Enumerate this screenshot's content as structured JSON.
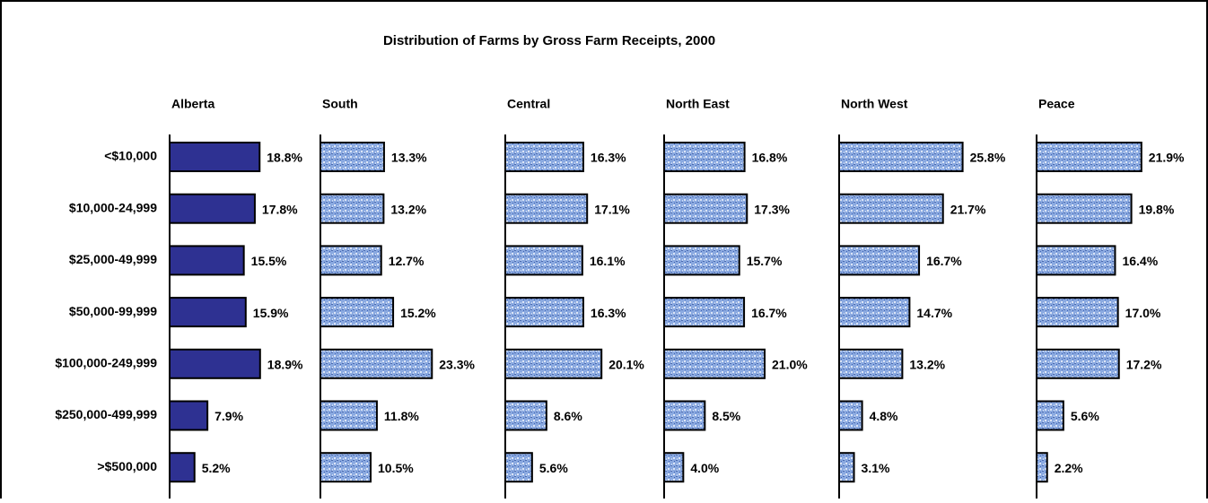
{
  "chart_data": {
    "type": "bar",
    "orientation": "horizontal",
    "title": "Distribution of Farms by Gross Farm Receipts, 2000",
    "categories": [
      "<$10,000",
      "$10,000-24,999",
      "$25,000-49,999",
      "$50,000-99,999",
      "$100,000-249,999",
      "$250,000-499,999",
      ">$500,000"
    ],
    "xlim": [
      0,
      30
    ],
    "series": [
      {
        "name": "Alberta",
        "color": "#2e3192",
        "pattern": false,
        "values": [
          18.8,
          17.8,
          15.5,
          15.9,
          18.9,
          7.9,
          5.2
        ],
        "value_labels": [
          "18.8%",
          "17.8%",
          "15.5%",
          "15.9%",
          "18.9%",
          "7.9%",
          "5.2%"
        ]
      },
      {
        "name": "South",
        "color": "#7f9fd8",
        "pattern": true,
        "values": [
          13.3,
          13.2,
          12.7,
          15.2,
          23.3,
          11.8,
          10.5
        ],
        "value_labels": [
          "13.3%",
          "13.2%",
          "12.7%",
          "15.2%",
          "23.3%",
          "11.8%",
          "10.5%"
        ]
      },
      {
        "name": "Central",
        "color": "#7f9fd8",
        "pattern": true,
        "values": [
          16.3,
          17.1,
          16.1,
          16.3,
          20.1,
          8.6,
          5.6
        ],
        "value_labels": [
          "16.3%",
          "17.1%",
          "16.1%",
          "16.3%",
          "20.1%",
          "8.6%",
          "5.6%"
        ]
      },
      {
        "name": "North East",
        "color": "#7f9fd8",
        "pattern": true,
        "values": [
          16.8,
          17.3,
          15.7,
          16.7,
          21.0,
          8.5,
          4.0
        ],
        "value_labels": [
          "16.8%",
          "17.3%",
          "15.7%",
          "16.7%",
          "21.0%",
          "8.5%",
          "4.0%"
        ]
      },
      {
        "name": "North West",
        "color": "#7f9fd8",
        "pattern": true,
        "values": [
          25.8,
          21.7,
          16.7,
          14.7,
          13.2,
          4.8,
          3.1
        ],
        "value_labels": [
          "25.8%",
          "21.7%",
          "16.7%",
          "14.7%",
          "13.2%",
          "4.8%",
          "3.1%"
        ]
      },
      {
        "name": "Peace",
        "color": "#7f9fd8",
        "pattern": true,
        "values": [
          21.9,
          19.8,
          16.4,
          17.0,
          17.2,
          5.6,
          2.2
        ],
        "value_labels": [
          "21.9%",
          "19.8%",
          "16.4%",
          "17.0%",
          "17.2%",
          "5.6%",
          "2.2%"
        ]
      }
    ]
  }
}
